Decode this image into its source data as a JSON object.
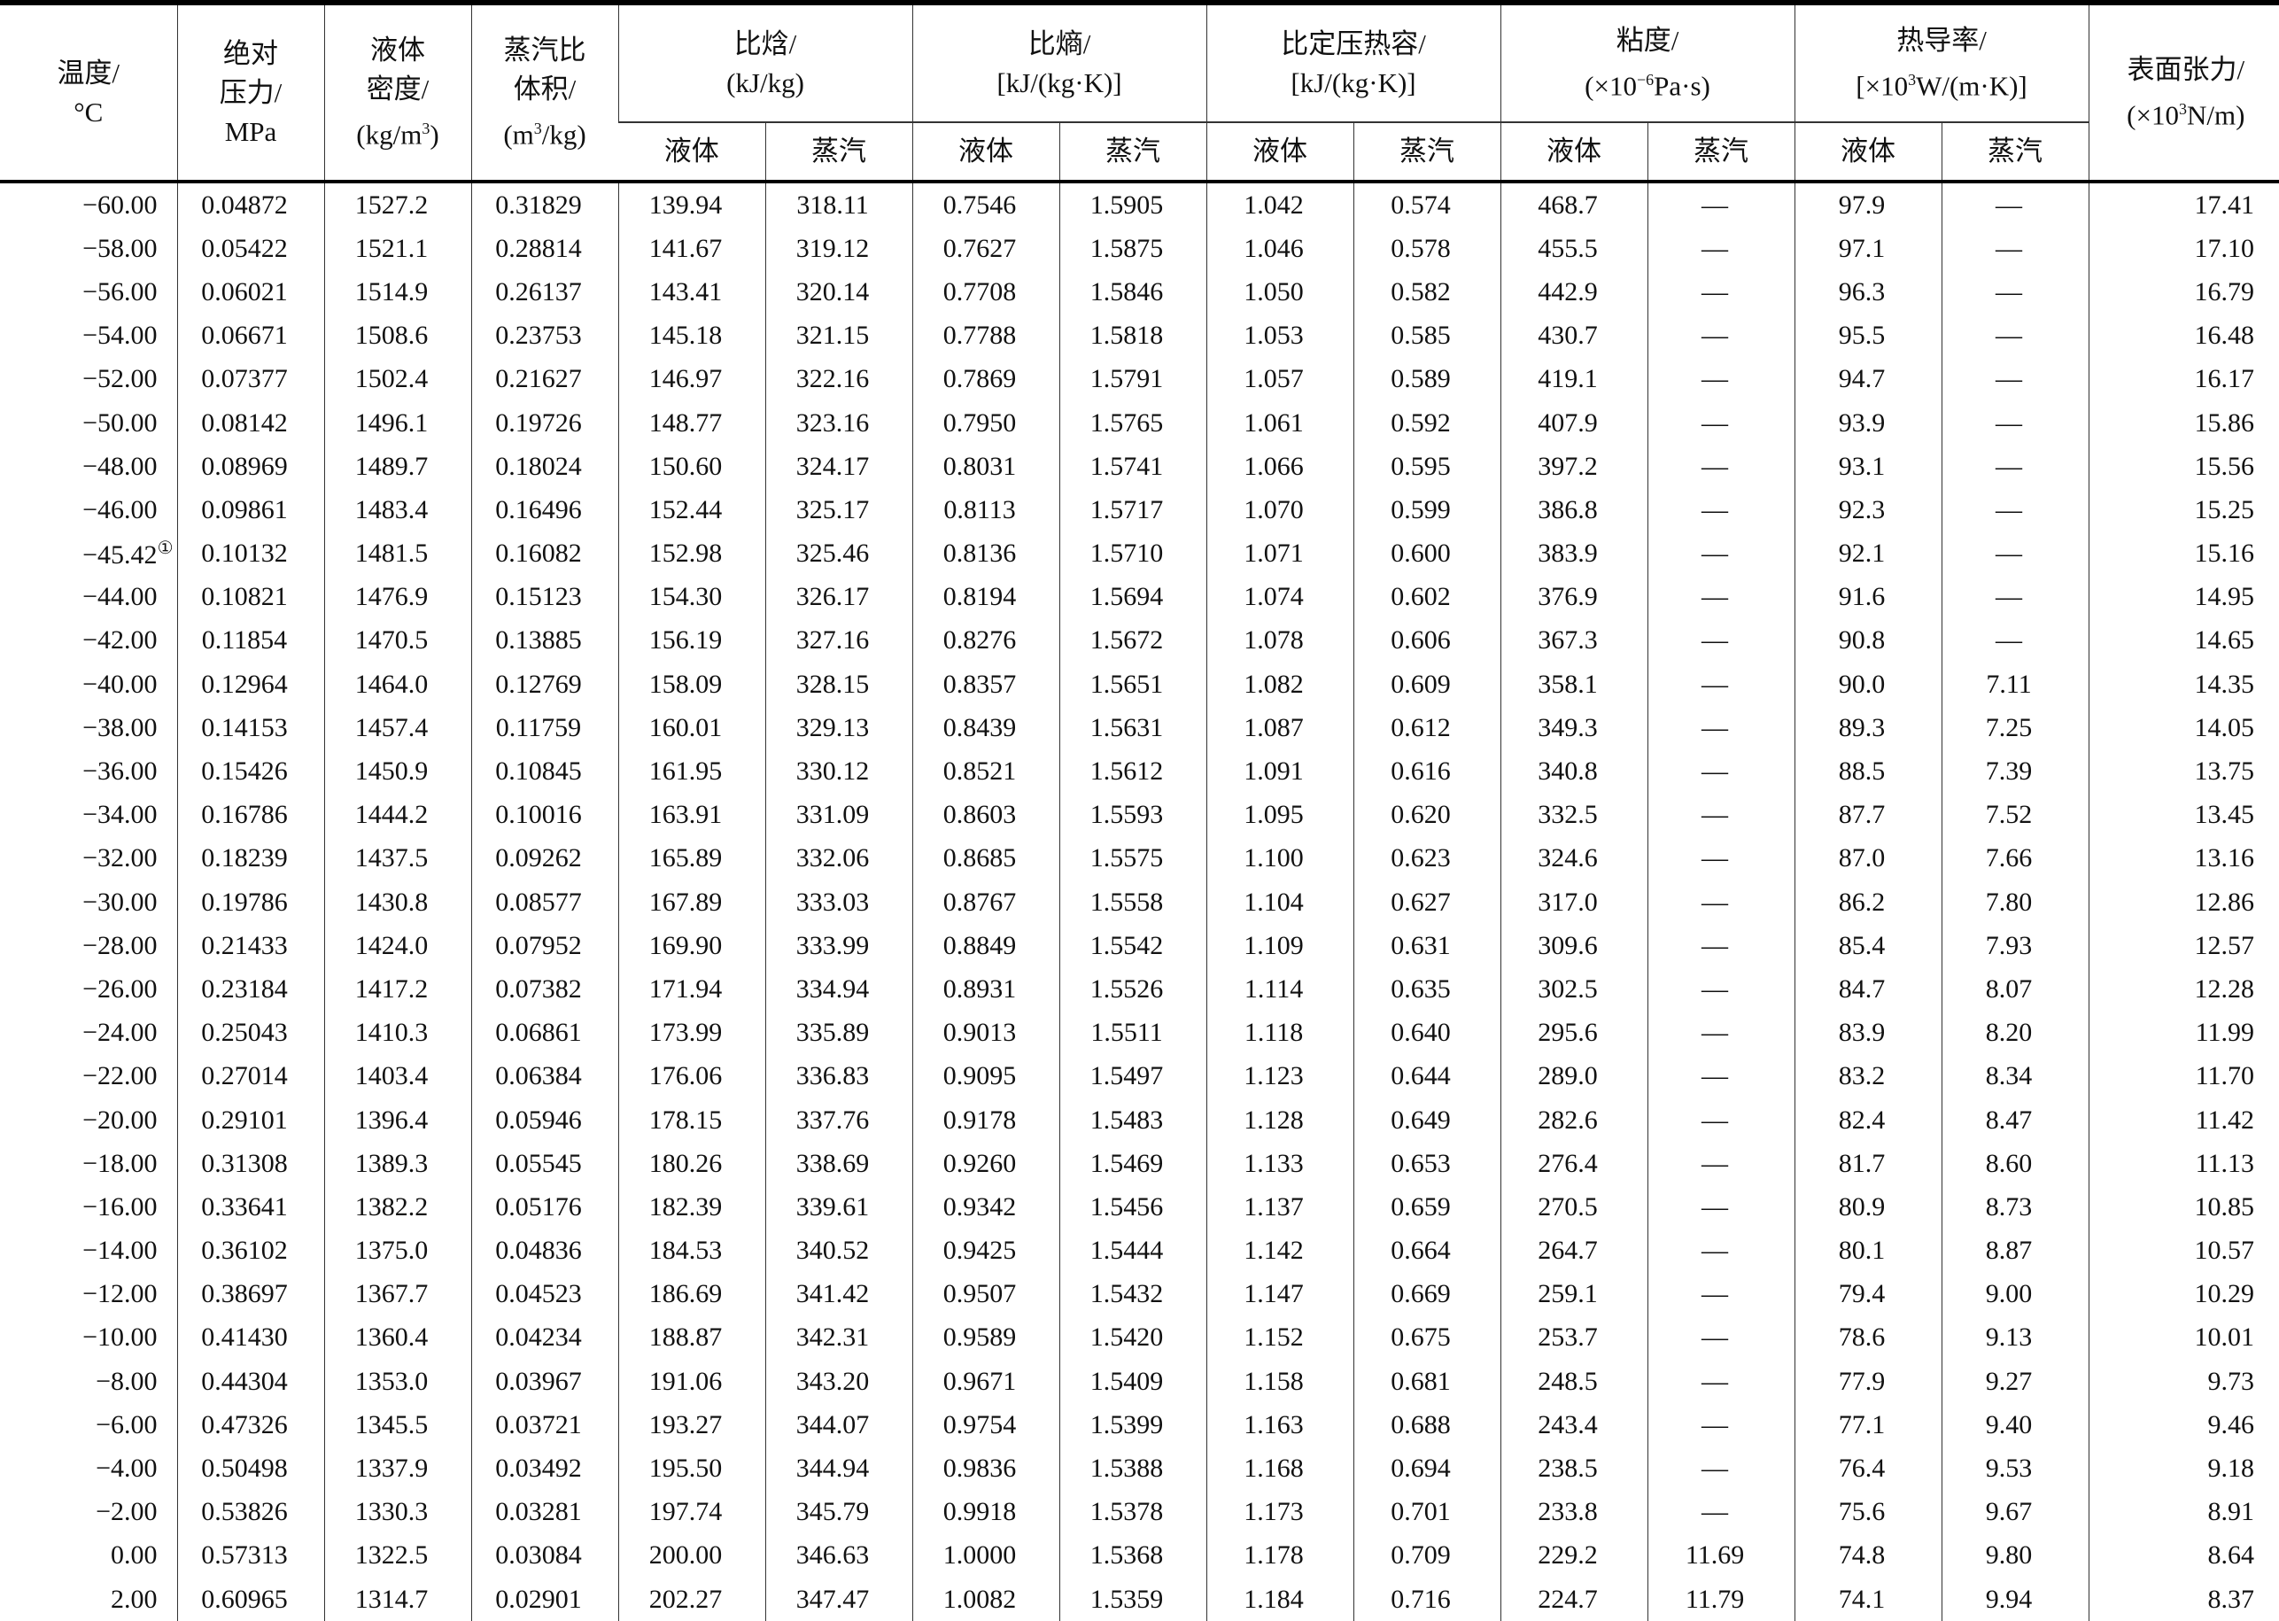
{
  "header": {
    "temperature": [
      "温度/",
      "°C"
    ],
    "pressure": [
      "绝对",
      "压力/",
      "MPa"
    ],
    "liquid_density": [
      "液体",
      "密度/",
      "(kg/m",
      "3",
      ")"
    ],
    "vapor_volume": [
      "蒸汽比",
      "体积/",
      "(m",
      "3",
      "/kg)"
    ],
    "enthalpy": [
      "比焓/",
      "(kJ/kg)"
    ],
    "entropy": [
      "比熵/",
      "[kJ/(kg·K)]"
    ],
    "cp": [
      "比定压热容/",
      "[kJ/(kg·K)]"
    ],
    "viscosity": [
      "粘度/",
      "(×10",
      "−6",
      "Pa·s)"
    ],
    "conductivity": [
      "热导率/",
      "[×10",
      "3",
      "W/(m·K)]"
    ],
    "surface_tension": [
      "表面张力/",
      "(×10",
      "3",
      "N/m)"
    ],
    "liquid": "液体",
    "vapor": "蒸汽"
  },
  "footnote_mark": "①",
  "rows": [
    [
      "−60.00",
      "0.04872",
      "1527.2",
      "0.31829",
      "139.94",
      "318.11",
      "0.7546",
      "1.5905",
      "1.042",
      "0.574",
      "468.7",
      "—",
      "97.9",
      "—",
      "17.41"
    ],
    [
      "−58.00",
      "0.05422",
      "1521.1",
      "0.28814",
      "141.67",
      "319.12",
      "0.7627",
      "1.5875",
      "1.046",
      "0.578",
      "455.5",
      "—",
      "97.1",
      "—",
      "17.10"
    ],
    [
      "−56.00",
      "0.06021",
      "1514.9",
      "0.26137",
      "143.41",
      "320.14",
      "0.7708",
      "1.5846",
      "1.050",
      "0.582",
      "442.9",
      "—",
      "96.3",
      "—",
      "16.79"
    ],
    [
      "−54.00",
      "0.06671",
      "1508.6",
      "0.23753",
      "145.18",
      "321.15",
      "0.7788",
      "1.5818",
      "1.053",
      "0.585",
      "430.7",
      "—",
      "95.5",
      "—",
      "16.48"
    ],
    [
      "−52.00",
      "0.07377",
      "1502.4",
      "0.21627",
      "146.97",
      "322.16",
      "0.7869",
      "1.5791",
      "1.057",
      "0.589",
      "419.1",
      "—",
      "94.7",
      "—",
      "16.17"
    ],
    [
      "−50.00",
      "0.08142",
      "1496.1",
      "0.19726",
      "148.77",
      "323.16",
      "0.7950",
      "1.5765",
      "1.061",
      "0.592",
      "407.9",
      "—",
      "93.9",
      "—",
      "15.86"
    ],
    [
      "−48.00",
      "0.08969",
      "1489.7",
      "0.18024",
      "150.60",
      "324.17",
      "0.8031",
      "1.5741",
      "1.066",
      "0.595",
      "397.2",
      "—",
      "93.1",
      "—",
      "15.56"
    ],
    [
      "−46.00",
      "0.09861",
      "1483.4",
      "0.16496",
      "152.44",
      "325.17",
      "0.8113",
      "1.5717",
      "1.070",
      "0.599",
      "386.8",
      "—",
      "92.3",
      "—",
      "15.25"
    ],
    [
      "−45.42",
      "0.10132",
      "1481.5",
      "0.16082",
      "152.98",
      "325.46",
      "0.8136",
      "1.5710",
      "1.071",
      "0.600",
      "383.9",
      "—",
      "92.1",
      "—",
      "15.16"
    ],
    [
      "−44.00",
      "0.10821",
      "1476.9",
      "0.15123",
      "154.30",
      "326.17",
      "0.8194",
      "1.5694",
      "1.074",
      "0.602",
      "376.9",
      "—",
      "91.6",
      "—",
      "14.95"
    ],
    [
      "−42.00",
      "0.11854",
      "1470.5",
      "0.13885",
      "156.19",
      "327.16",
      "0.8276",
      "1.5672",
      "1.078",
      "0.606",
      "367.3",
      "—",
      "90.8",
      "—",
      "14.65"
    ],
    [
      "−40.00",
      "0.12964",
      "1464.0",
      "0.12769",
      "158.09",
      "328.15",
      "0.8357",
      "1.5651",
      "1.082",
      "0.609",
      "358.1",
      "—",
      "90.0",
      "7.11",
      "14.35"
    ],
    [
      "−38.00",
      "0.14153",
      "1457.4",
      "0.11759",
      "160.01",
      "329.13",
      "0.8439",
      "1.5631",
      "1.087",
      "0.612",
      "349.3",
      "—",
      "89.3",
      "7.25",
      "14.05"
    ],
    [
      "−36.00",
      "0.15426",
      "1450.9",
      "0.10845",
      "161.95",
      "330.12",
      "0.8521",
      "1.5612",
      "1.091",
      "0.616",
      "340.8",
      "—",
      "88.5",
      "7.39",
      "13.75"
    ],
    [
      "−34.00",
      "0.16786",
      "1444.2",
      "0.10016",
      "163.91",
      "331.09",
      "0.8603",
      "1.5593",
      "1.095",
      "0.620",
      "332.5",
      "—",
      "87.7",
      "7.52",
      "13.45"
    ],
    [
      "−32.00",
      "0.18239",
      "1437.5",
      "0.09262",
      "165.89",
      "332.06",
      "0.8685",
      "1.5575",
      "1.100",
      "0.623",
      "324.6",
      "—",
      "87.0",
      "7.66",
      "13.16"
    ],
    [
      "−30.00",
      "0.19786",
      "1430.8",
      "0.08577",
      "167.89",
      "333.03",
      "0.8767",
      "1.5558",
      "1.104",
      "0.627",
      "317.0",
      "—",
      "86.2",
      "7.80",
      "12.86"
    ],
    [
      "−28.00",
      "0.21433",
      "1424.0",
      "0.07952",
      "169.90",
      "333.99",
      "0.8849",
      "1.5542",
      "1.109",
      "0.631",
      "309.6",
      "—",
      "85.4",
      "7.93",
      "12.57"
    ],
    [
      "−26.00",
      "0.23184",
      "1417.2",
      "0.07382",
      "171.94",
      "334.94",
      "0.8931",
      "1.5526",
      "1.114",
      "0.635",
      "302.5",
      "—",
      "84.7",
      "8.07",
      "12.28"
    ],
    [
      "−24.00",
      "0.25043",
      "1410.3",
      "0.06861",
      "173.99",
      "335.89",
      "0.9013",
      "1.5511",
      "1.118",
      "0.640",
      "295.6",
      "—",
      "83.9",
      "8.20",
      "11.99"
    ],
    [
      "−22.00",
      "0.27014",
      "1403.4",
      "0.06384",
      "176.06",
      "336.83",
      "0.9095",
      "1.5497",
      "1.123",
      "0.644",
      "289.0",
      "—",
      "83.2",
      "8.34",
      "11.70"
    ],
    [
      "−20.00",
      "0.29101",
      "1396.4",
      "0.05946",
      "178.15",
      "337.76",
      "0.9178",
      "1.5483",
      "1.128",
      "0.649",
      "282.6",
      "—",
      "82.4",
      "8.47",
      "11.42"
    ],
    [
      "−18.00",
      "0.31308",
      "1389.3",
      "0.05545",
      "180.26",
      "338.69",
      "0.9260",
      "1.5469",
      "1.133",
      "0.653",
      "276.4",
      "—",
      "81.7",
      "8.60",
      "11.13"
    ],
    [
      "−16.00",
      "0.33641",
      "1382.2",
      "0.05176",
      "182.39",
      "339.61",
      "0.9342",
      "1.5456",
      "1.137",
      "0.659",
      "270.5",
      "—",
      "80.9",
      "8.73",
      "10.85"
    ],
    [
      "−14.00",
      "0.36102",
      "1375.0",
      "0.04836",
      "184.53",
      "340.52",
      "0.9425",
      "1.5444",
      "1.142",
      "0.664",
      "264.7",
      "—",
      "80.1",
      "8.87",
      "10.57"
    ],
    [
      "−12.00",
      "0.38697",
      "1367.7",
      "0.04523",
      "186.69",
      "341.42",
      "0.9507",
      "1.5432",
      "1.147",
      "0.669",
      "259.1",
      "—",
      "79.4",
      "9.00",
      "10.29"
    ],
    [
      "−10.00",
      "0.41430",
      "1360.4",
      "0.04234",
      "188.87",
      "342.31",
      "0.9589",
      "1.5420",
      "1.152",
      "0.675",
      "253.7",
      "—",
      "78.6",
      "9.13",
      "10.01"
    ],
    [
      "−8.00",
      "0.44304",
      "1353.0",
      "0.03967",
      "191.06",
      "343.20",
      "0.9671",
      "1.5409",
      "1.158",
      "0.681",
      "248.5",
      "—",
      "77.9",
      "9.27",
      "9.73"
    ],
    [
      "−6.00",
      "0.47326",
      "1345.5",
      "0.03721",
      "193.27",
      "344.07",
      "0.9754",
      "1.5399",
      "1.163",
      "0.688",
      "243.4",
      "—",
      "77.1",
      "9.40",
      "9.46"
    ],
    [
      "−4.00",
      "0.50498",
      "1337.9",
      "0.03492",
      "195.50",
      "344.94",
      "0.9836",
      "1.5388",
      "1.168",
      "0.694",
      "238.5",
      "—",
      "76.4",
      "9.53",
      "9.18"
    ],
    [
      "−2.00",
      "0.53826",
      "1330.3",
      "0.03281",
      "197.74",
      "345.79",
      "0.9918",
      "1.5378",
      "1.173",
      "0.701",
      "233.8",
      "—",
      "75.6",
      "9.67",
      "8.91"
    ],
    [
      "0.00",
      "0.57313",
      "1322.5",
      "0.03084",
      "200.00",
      "346.63",
      "1.0000",
      "1.5368",
      "1.178",
      "0.709",
      "229.2",
      "11.69",
      "74.8",
      "9.80",
      "8.64"
    ],
    [
      "2.00",
      "0.60965",
      "1314.7",
      "0.02901",
      "202.27",
      "347.47",
      "1.0082",
      "1.5359",
      "1.184",
      "0.716",
      "224.7",
      "11.79",
      "74.1",
      "9.94",
      "8.37"
    ]
  ],
  "footnote_row": 8
}
